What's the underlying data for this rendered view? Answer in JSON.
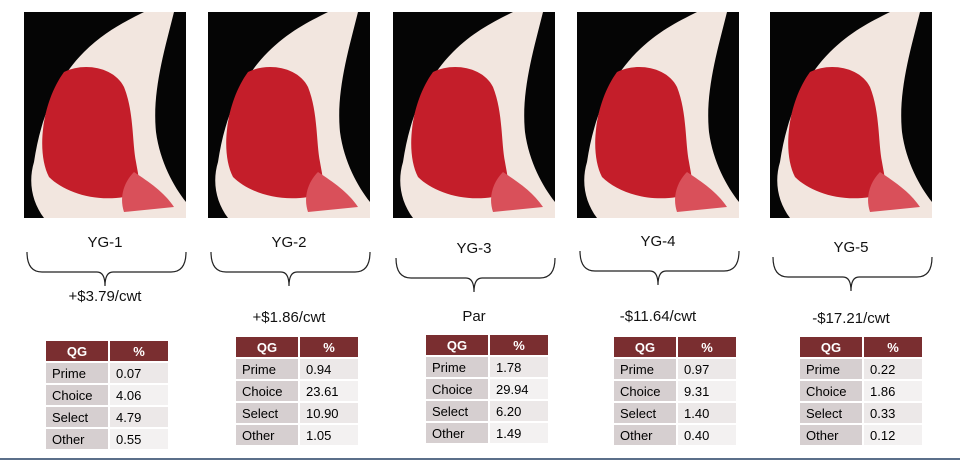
{
  "panels": [
    {
      "grade": "YG-1",
      "premium": "+$3.79/cwt",
      "table": {
        "header": [
          "QG",
          "%"
        ],
        "rows": [
          [
            "Prime",
            "0.07"
          ],
          [
            "Choice",
            "4.06"
          ],
          [
            "Select",
            "4.79"
          ],
          [
            "Other",
            "0.55"
          ]
        ]
      }
    },
    {
      "grade": "YG-2",
      "premium": "+$1.86/cwt",
      "table": {
        "header": [
          "QG",
          "%"
        ],
        "rows": [
          [
            "Prime",
            "0.94"
          ],
          [
            "Choice",
            "23.61"
          ],
          [
            "Select",
            "10.90"
          ],
          [
            "Other",
            "1.05"
          ]
        ]
      }
    },
    {
      "grade": "YG-3",
      "premium": "Par",
      "table": {
        "header": [
          "QG",
          "%"
        ],
        "rows": [
          [
            "Prime",
            "1.78"
          ],
          [
            "Choice",
            "29.94"
          ],
          [
            "Select",
            "6.20"
          ],
          [
            "Other",
            "1.49"
          ]
        ]
      }
    },
    {
      "grade": "YG-4",
      "premium": "-$11.64/cwt",
      "table": {
        "header": [
          "QG",
          "%"
        ],
        "rows": [
          [
            "Prime",
            "0.97"
          ],
          [
            "Choice",
            "9.31"
          ],
          [
            "Select",
            "1.40"
          ],
          [
            "Other",
            "0.40"
          ]
        ]
      }
    },
    {
      "grade": "YG-5",
      "premium": "-$17.21/cwt",
      "table": {
        "header": [
          "QG",
          "%"
        ],
        "rows": [
          [
            "Prime",
            "0.22"
          ],
          [
            "Choice",
            "1.86"
          ],
          [
            "Select",
            "0.33"
          ],
          [
            "Other",
            "0.12"
          ]
        ]
      }
    }
  ]
}
